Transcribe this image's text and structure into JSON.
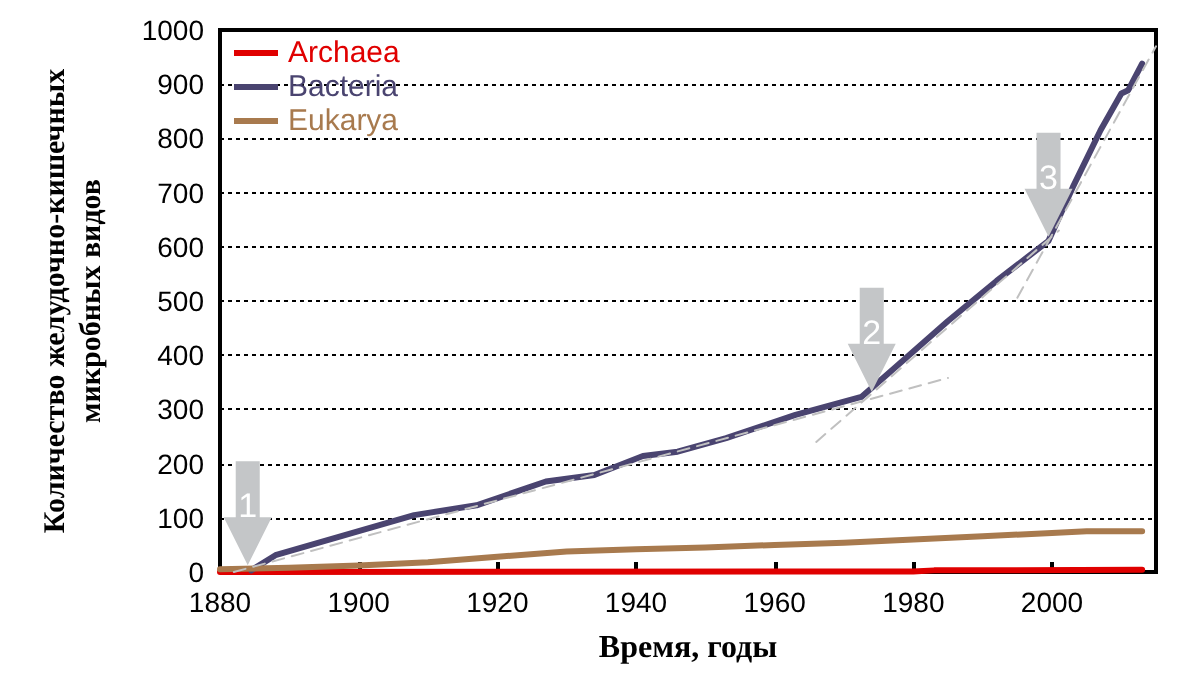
{
  "chart_data": {
    "type": "line",
    "xlabel": "Время, годы",
    "ylabel": "Количество желудочно-кишечных\nмикробных видов",
    "xlim": [
      1880,
      2015
    ],
    "xticks": [
      1880,
      1900,
      1920,
      1940,
      1960,
      1980,
      2000
    ],
    "ylim": [
      0,
      1000
    ],
    "yticks": [
      0,
      100,
      200,
      300,
      400,
      500,
      600,
      700,
      800,
      900,
      1000
    ],
    "grid": "y",
    "legend": "top left",
    "marker": "none",
    "line_style": "solid",
    "series": [
      {
        "name": "Archaea",
        "color": "#e00000",
        "x": [
          1880,
          1980,
          1983,
          2013
        ],
        "values": [
          0,
          1,
          3,
          4
        ]
      },
      {
        "name": "Bacteria",
        "color": "#4a4470",
        "x": [
          1884.5,
          1888,
          1898,
          1908,
          1917,
          1927,
          1934,
          1941,
          1946,
          1953,
          1963,
          1972.5,
          1977,
          1985,
          1992,
          1999.5,
          2003,
          2007,
          2010,
          2011,
          2013
        ],
        "values": [
          3,
          31,
          68,
          105,
          123,
          167,
          179,
          214,
          222,
          247,
          290,
          323,
          373,
          463,
          537,
          611,
          710,
          815,
          883,
          889,
          938
        ]
      },
      {
        "name": "Eukarya",
        "color": "#a87a4e",
        "x": [
          1880,
          1890,
          1900,
          1910,
          1920,
          1930,
          1940,
          1950,
          1960,
          1970,
          1980,
          1990,
          2000,
          2005,
          2013
        ],
        "values": [
          5,
          8,
          12,
          18,
          28,
          38,
          42,
          45,
          50,
          54,
          60,
          66,
          72,
          75,
          75
        ]
      },
      {
        "type": "line",
        "color": "#c0c0c0",
        "line_style": "dashed",
        "x": [
          1882,
          1985
        ],
        "values": [
          0,
          358
        ]
      },
      {
        "type": "line",
        "color": "#c0c0c0",
        "line_style": "dashed",
        "x": [
          1966,
          2001
        ],
        "values": [
          240,
          630
        ]
      },
      {
        "type": "line",
        "color": "#c0c0c0",
        "line_style": "dashed",
        "x": [
          1995,
          2015
        ],
        "values": [
          506,
          970
        ]
      }
    ],
    "annotations": [
      {
        "text": "1",
        "x": 1884,
        "y": 5
      },
      {
        "text": "2",
        "x": 1974,
        "y": 325
      },
      {
        "text": "3",
        "x": 1999.5,
        "y": 611
      }
    ]
  }
}
